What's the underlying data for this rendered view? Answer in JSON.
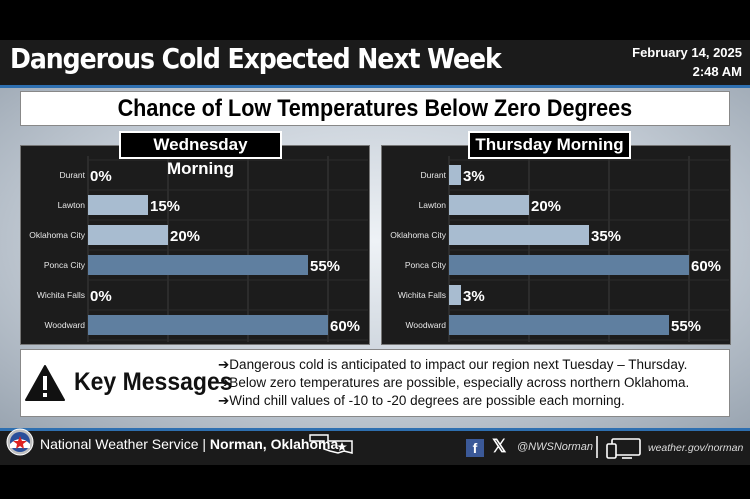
{
  "header": {
    "title": "Dangerous Cold Expected Next Week",
    "date": "February 14, 2025",
    "time": "2:48 AM"
  },
  "subtitle": "Chance of Low Temperatures Below Zero Degrees",
  "chart_data": [
    {
      "type": "bar",
      "orientation": "horizontal",
      "title": "Wednesday Morning",
      "categories": [
        "Durant",
        "Lawton",
        "Oklahoma City",
        "Ponca City",
        "Wichita Falls",
        "Woodward"
      ],
      "values": [
        0,
        15,
        20,
        55,
        0,
        60
      ],
      "labels": [
        "0%",
        "15%",
        "20%",
        "55%",
        "0%",
        "60%"
      ],
      "xlim": [
        0,
        70
      ],
      "grid": true
    },
    {
      "type": "bar",
      "orientation": "horizontal",
      "title": "Thursday Morning",
      "categories": [
        "Durant",
        "Lawton",
        "Oklahoma City",
        "Ponca City",
        "Wichita Falls",
        "Woodward"
      ],
      "values": [
        3,
        20,
        35,
        60,
        3,
        55
      ],
      "labels": [
        "3%",
        "20%",
        "35%",
        "60%",
        "3%",
        "55%"
      ],
      "xlim": [
        0,
        70
      ],
      "grid": true
    }
  ],
  "key_messages": {
    "label": "Key Messages",
    "items": [
      "➔Dangerous cold is anticipated to impact our region next Tuesday – Thursday.",
      "➔Below zero temperatures are possible, especially across northern Oklahoma.",
      "➔Wind chill values of -10 to -20 degrees are possible each morning."
    ]
  },
  "footer": {
    "org": "National Weather Service | ",
    "office": "Norman, Oklahoma",
    "facebook": "f",
    "x": "𝕏",
    "handle": "@NWSNorman",
    "website": "weather.gov/norman"
  },
  "colors": {
    "bar_fill": "#5f7fa0",
    "bar_fill_light": "#a8bcd0",
    "accent": "#2e6fb0",
    "panel_bg": "#1c1c1c"
  }
}
